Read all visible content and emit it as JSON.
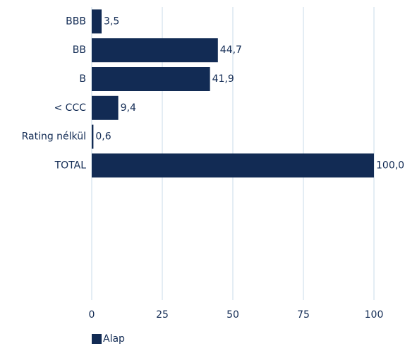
{
  "chart_data": {
    "type": "bar",
    "orientation": "horizontal",
    "categories": [
      "BBB",
      "BB",
      "B",
      "< CCC",
      "Rating nélkül",
      "TOTAL"
    ],
    "series": [
      {
        "name": "Alap",
        "color": "#122b54",
        "values": [
          3.5,
          44.7,
          41.9,
          9.4,
          0.6,
          100.0
        ],
        "value_labels": [
          "3,5",
          "44,7",
          "41,9",
          "9,4",
          "0,6",
          "100,0"
        ]
      }
    ],
    "xlim": [
      0,
      100
    ],
    "xticks": [
      0,
      25,
      50,
      75,
      100
    ],
    "grid": true,
    "grid_color": "#c9dbe9",
    "legend": "bottom-left"
  }
}
